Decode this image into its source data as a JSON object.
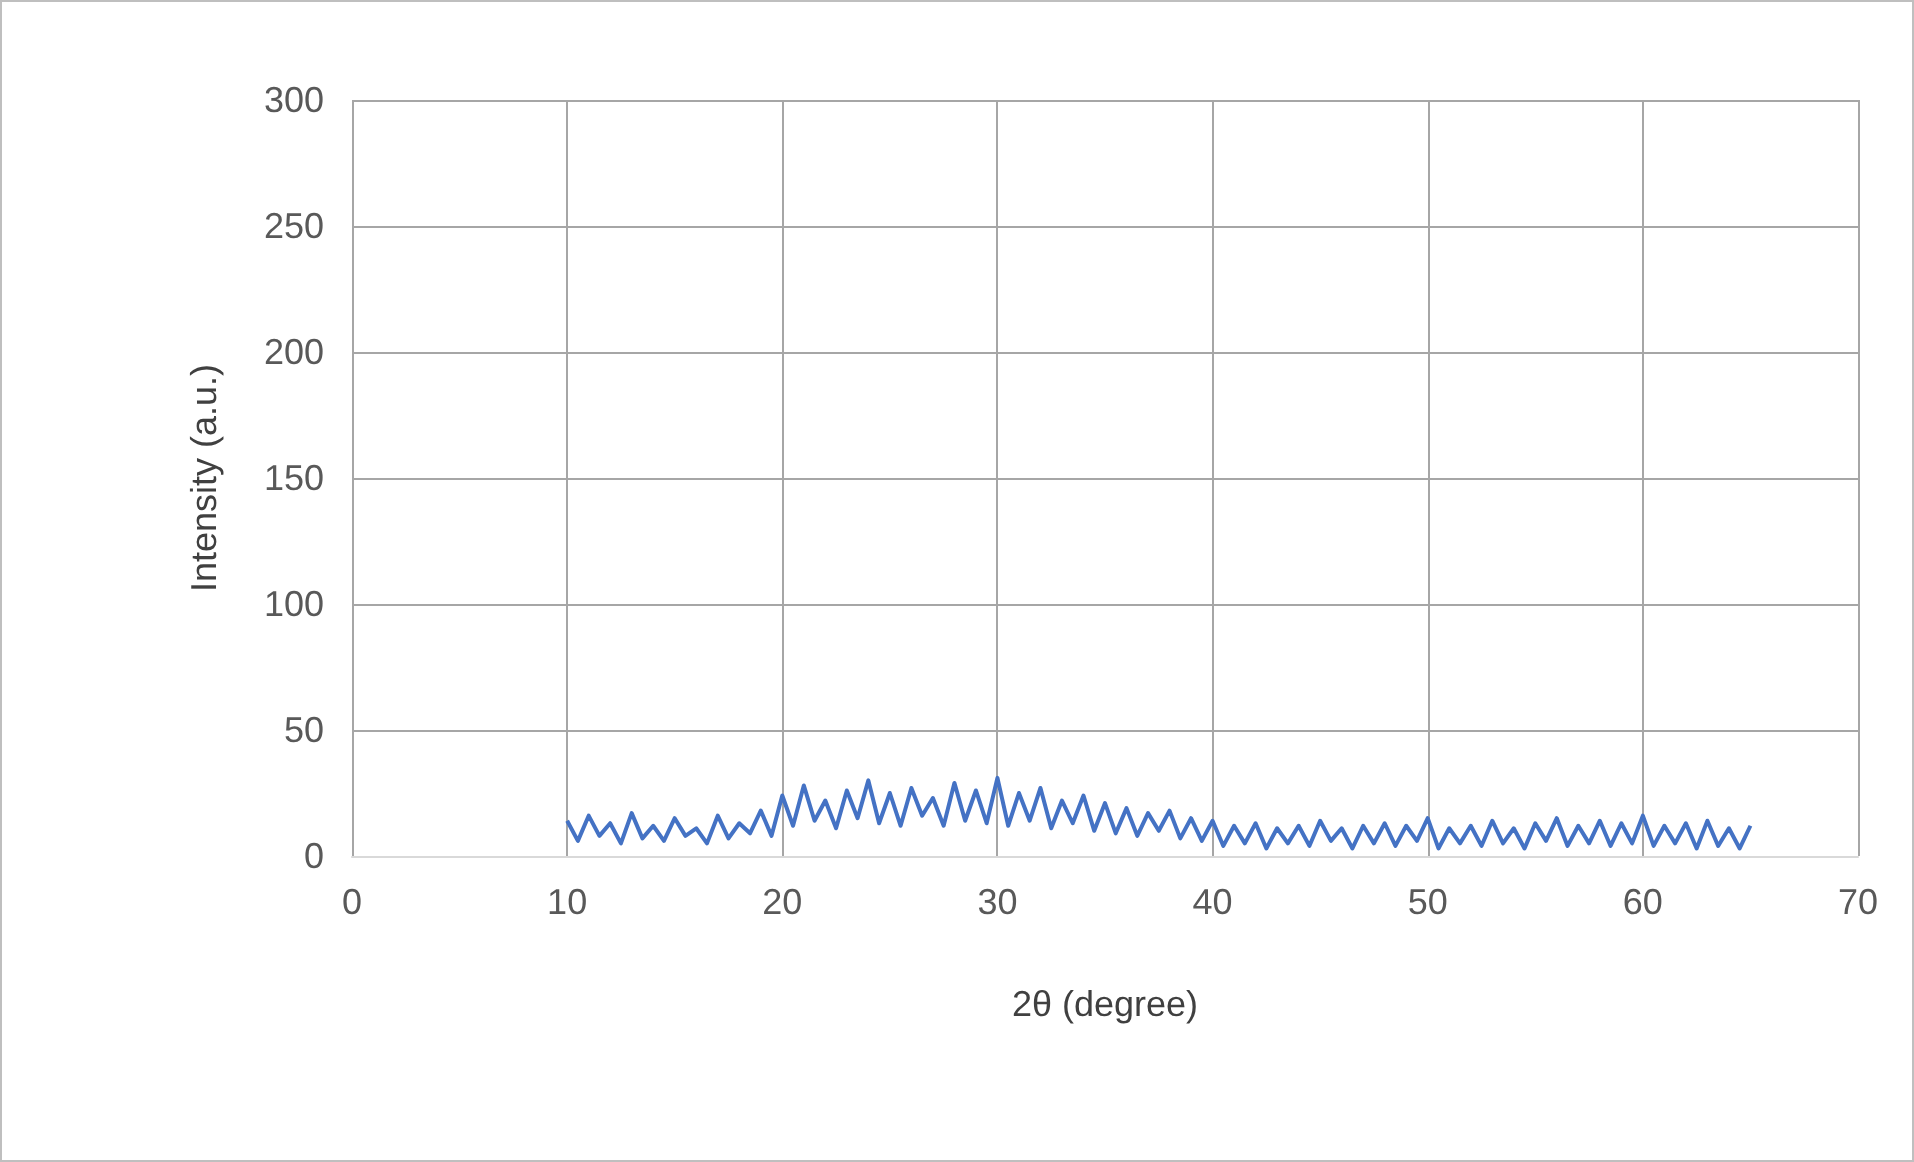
{
  "chart_data": {
    "type": "line",
    "xlabel": "2θ (degree)",
    "ylabel": "Intensity (a.u.)",
    "x": [
      10,
      10.5,
      11,
      11.5,
      12,
      12.5,
      13,
      13.5,
      14,
      14.5,
      15,
      15.5,
      16,
      16.5,
      17,
      17.5,
      18,
      18.5,
      19,
      19.5,
      20,
      20.5,
      21,
      21.5,
      22,
      22.5,
      23,
      23.5,
      24,
      24.5,
      25,
      25.5,
      26,
      26.5,
      27,
      27.5,
      28,
      28.5,
      29,
      29.5,
      30,
      30.5,
      31,
      31.5,
      32,
      32.5,
      33,
      33.5,
      34,
      34.5,
      35,
      35.5,
      36,
      36.5,
      37,
      37.5,
      38,
      38.5,
      39,
      39.5,
      40,
      40.5,
      41,
      41.5,
      42,
      42.5,
      43,
      43.5,
      44,
      44.5,
      45,
      45.5,
      46,
      46.5,
      47,
      47.5,
      48,
      48.5,
      49,
      49.5,
      50,
      50.5,
      51,
      51.5,
      52,
      52.5,
      53,
      53.5,
      54,
      54.5,
      55,
      55.5,
      56,
      56.5,
      57,
      57.5,
      58,
      58.5,
      59,
      59.5,
      60,
      60.5,
      61,
      61.5,
      62,
      62.5,
      63,
      63.5,
      64,
      64.5,
      65
    ],
    "series": [
      {
        "color": "#4472c4",
        "values": [
          14,
          6,
          16,
          8,
          13,
          5,
          17,
          7,
          12,
          6,
          15,
          8,
          11,
          5,
          16,
          7,
          13,
          9,
          18,
          8,
          24,
          12,
          28,
          14,
          22,
          11,
          26,
          15,
          30,
          13,
          25,
          12,
          27,
          16,
          23,
          12,
          29,
          14,
          26,
          13,
          31,
          12,
          25,
          14,
          27,
          11,
          22,
          13,
          24,
          10,
          21,
          9,
          19,
          8,
          17,
          10,
          18,
          7,
          15,
          6,
          14,
          4,
          12,
          5,
          13,
          3,
          11,
          5,
          12,
          4,
          14,
          6,
          11,
          3,
          12,
          5,
          13,
          4,
          12,
          6,
          15,
          3,
          11,
          5,
          12,
          4,
          14,
          5,
          11,
          3,
          13,
          6,
          15,
          4,
          12,
          5,
          14,
          4,
          13,
          5,
          16,
          4,
          12,
          5,
          13,
          3,
          14,
          4,
          11,
          3,
          12
        ]
      }
    ],
    "xlim": [
      0,
      70
    ],
    "xticks": [
      0,
      10,
      20,
      30,
      40,
      50,
      60,
      70
    ],
    "ylim": [
      0,
      300
    ],
    "yticks": [
      0,
      50,
      100,
      150,
      200,
      250,
      300
    ],
    "grid": true,
    "marker": "none",
    "line_style": "solid"
  }
}
